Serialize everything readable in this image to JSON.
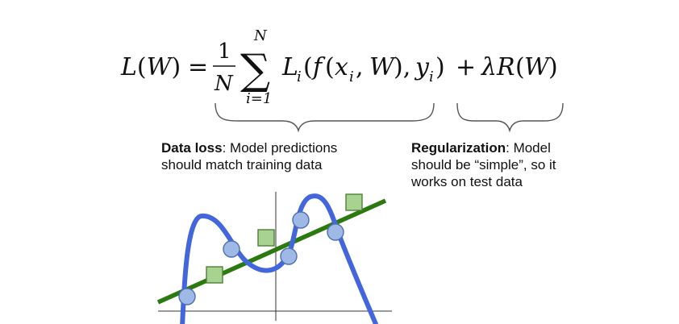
{
  "formula": {
    "lhs": "L(W)",
    "equals": "=",
    "frac_num": "1",
    "frac_den": "N",
    "sum_upper": "N",
    "sum_lower": "i=1",
    "sum_symbol": "∑",
    "data_term": "L_i(f(x_i, W), y_i)",
    "plus": "+",
    "reg_term": "λR(W)"
  },
  "annotations": {
    "data_loss": {
      "title": "Data loss",
      "text_line1": ": Model predictions",
      "text_line2": "should match training data"
    },
    "regularization": {
      "title": "Regularization",
      "text_line1": ": Model",
      "text_line2": "should be “simple”, so it",
      "text_line3": "works on test data"
    }
  },
  "plot": {
    "colors": {
      "curve": "#4466dd",
      "line": "#2a7a10",
      "circle_fill": "#9fb9e6",
      "circle_stroke": "#4f6fb0",
      "square_fill": "#a8d28f",
      "square_stroke": "#4f7f3a",
      "axis": "#333333"
    }
  }
}
